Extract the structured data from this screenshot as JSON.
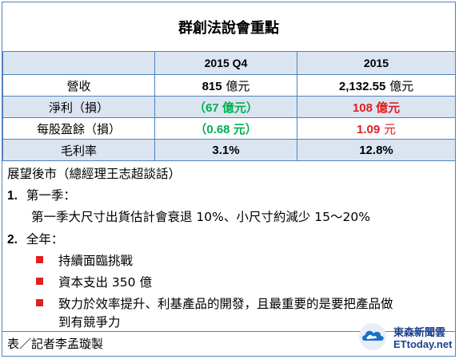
{
  "title": "群創法說會重點",
  "table": {
    "headers": [
      "",
      "2015 Q4",
      "2015"
    ],
    "rows": [
      {
        "label": "營收",
        "q4": "815",
        "q4_unit": " 億元",
        "year": "2,132.55",
        "year_unit": " 億元",
        "q4_color": "",
        "year_color": ""
      },
      {
        "label": "淨利（損）",
        "q4": "（67 億元）",
        "q4_unit": "",
        "year": "108 億元",
        "year_unit": "",
        "q4_color": "#00b050",
        "year_color": "#e02020"
      },
      {
        "label": "每股盈餘（損）",
        "q4": "（0.68 元）",
        "q4_unit": "",
        "year": "1.09",
        "year_unit": " 元",
        "q4_color": "#00b050",
        "year_color": "#e02020"
      },
      {
        "label": "毛利率",
        "q4": "3.1%",
        "q4_unit": "",
        "year": "12.8%",
        "year_unit": "",
        "q4_color": "",
        "year_color": ""
      }
    ]
  },
  "notes": {
    "heading": "展望後市（總經理王志超談話）",
    "item1": {
      "index": "1.",
      "label": "第一季：",
      "detail": "第一季大尺寸出貨估計會衰退 10%、小尺寸約減少 15～20%"
    },
    "item2": {
      "index": "2.",
      "label": "全年："
    },
    "bullets": [
      "持續面臨挑戰",
      "資本支出 350 億",
      "致力於效率提升、利基產品的開發，且最重要的是要把產品做",
      "到有競爭力"
    ]
  },
  "footer": "表／記者李孟璇製",
  "logo": {
    "line1": "東森新聞雲",
    "line2": "ETtoday.net",
    "icon": "ettoday-cloud-logo-icon"
  },
  "colors": {
    "border": "#4f81bd",
    "band": "#dbe5f1",
    "green": "#00b050",
    "red": "#e02020"
  }
}
